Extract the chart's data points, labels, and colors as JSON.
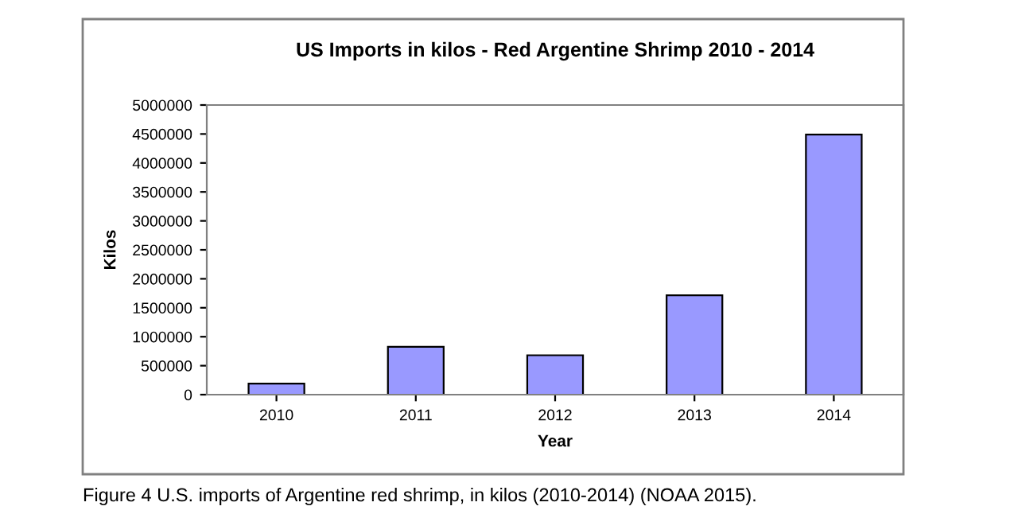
{
  "chart_data": {
    "type": "bar",
    "title": "US Imports in kilos - Red Argentine Shrimp 2010 - 2014",
    "xlabel": "Year",
    "ylabel": "Kilos",
    "categories": [
      "2010",
      "2011",
      "2012",
      "2013",
      "2014"
    ],
    "values": [
      190000,
      825000,
      680000,
      1715000,
      4490000
    ],
    "color": "#9999ff",
    "ylim": [
      0,
      5000000
    ],
    "yticks": [
      0,
      500000,
      1000000,
      1500000,
      2000000,
      2500000,
      3000000,
      3500000,
      4000000,
      4500000,
      5000000
    ],
    "grid": false,
    "annotations": [
      "Figure 4 U.S. imports of Argentine red shrimp, in kilos (2010-2014) (NOAA 2015)."
    ]
  }
}
